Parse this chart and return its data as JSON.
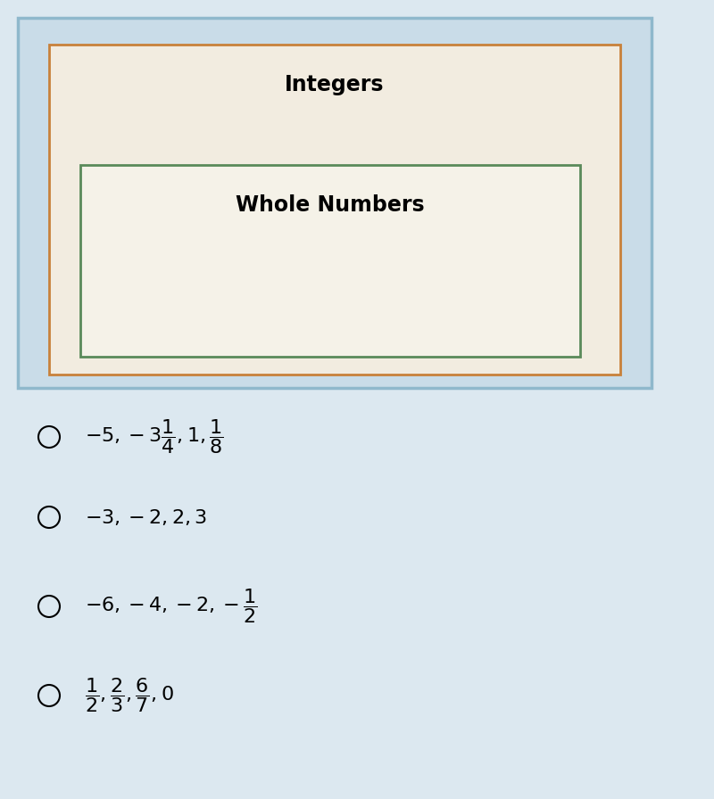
{
  "outer_box_bg": "#c9dce8",
  "integers_box_bg": "#f2ece0",
  "integers_box_border": "#c8813a",
  "integers_label": "Integers",
  "whole_box_bg": "#f5f2e8",
  "whole_box_border": "#5a8a5a",
  "whole_label": "Whole Numbers",
  "bg_color": "#dce8f0",
  "title_fontsize": 17,
  "option_fontsize": 16,
  "outer_border_color": "#8fb8cc",
  "option_texts_latex": [
    "$-5, -3\\dfrac{1}{4}, 1, \\dfrac{1}{8}$",
    "$-3, -2, 2, 3$",
    "$-6, -4, -2, -\\dfrac{1}{2}$",
    "$\\dfrac{1}{2}, \\dfrac{2}{3}, \\dfrac{6}{7}, 0$"
  ]
}
